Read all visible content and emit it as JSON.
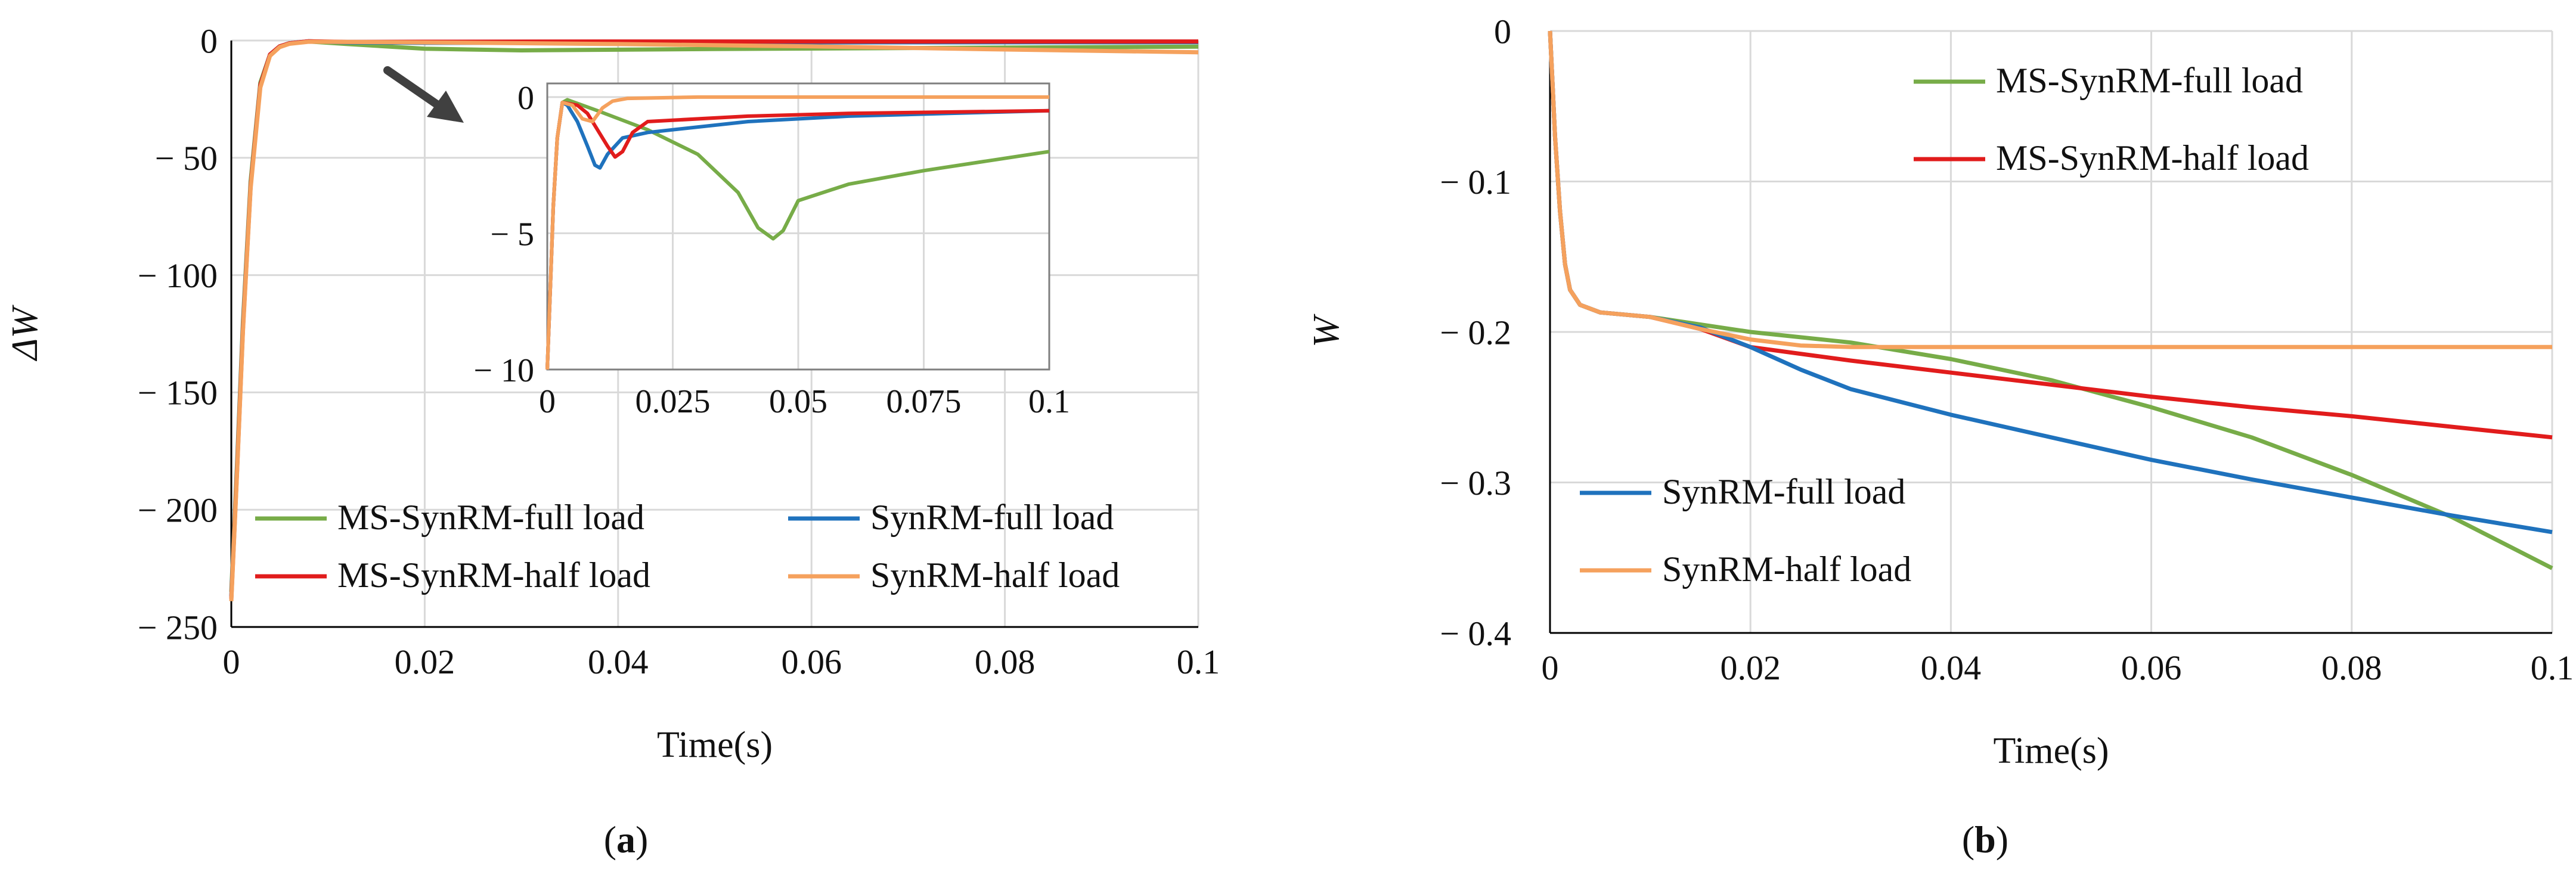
{
  "colors": {
    "ms_full": "#77ac48",
    "ms_half": "#e11c1c",
    "syn_full": "#1f72bd",
    "syn_half": "#f5a15d",
    "grid": "#d9d9d9",
    "axis": "#000000",
    "arrow": "#404040"
  },
  "chart_data": [
    {
      "id": "a",
      "type": "line",
      "panel_label": "a",
      "xlabel": "Time(s)",
      "ylabel": "ΔW",
      "xlim": [
        0,
        0.1
      ],
      "ylim": [
        -250,
        0
      ],
      "xticks": [
        0,
        0.02,
        0.04,
        0.06,
        0.08,
        0.1
      ],
      "xtick_labels": [
        "0",
        "0.02",
        "0.04",
        "0.06",
        "0.08",
        "0.1"
      ],
      "yticks": [
        0,
        -50,
        -100,
        -150,
        -200,
        -250
      ],
      "ytick_labels": [
        "0",
        "− 50",
        "− 100",
        "− 150",
        "− 200",
        "− 250"
      ],
      "grid": true,
      "legend": [
        "MS-SynRM-full load",
        "SynRM-full load",
        "MS-SynRM-half load",
        "SynRM-half load"
      ],
      "series": [
        {
          "name": "MS-SynRM-full load",
          "key": "ms_full",
          "points": [
            [
              0,
              -235
            ],
            [
              0.0006,
              -180
            ],
            [
              0.0012,
              -120
            ],
            [
              0.002,
              -60
            ],
            [
              0.003,
              -18
            ],
            [
              0.004,
              -6
            ],
            [
              0.005,
              -2.5
            ],
            [
              0.006,
              -1.2
            ],
            [
              0.008,
              -0.4
            ],
            [
              0.012,
              -1.5
            ],
            [
              0.02,
              -3.5
            ],
            [
              0.03,
              -4.2
            ],
            [
              0.05,
              -3.6
            ],
            [
              0.07,
              -3.2
            ],
            [
              0.1,
              -2.6
            ]
          ]
        },
        {
          "name": "SynRM-full load",
          "key": "syn_full",
          "points": [
            [
              0,
              -237
            ],
            [
              0.0006,
              -182
            ],
            [
              0.0012,
              -122
            ],
            [
              0.002,
              -62
            ],
            [
              0.003,
              -19
            ],
            [
              0.004,
              -6
            ],
            [
              0.005,
              -2.5
            ],
            [
              0.006,
              -1.2
            ],
            [
              0.008,
              -0.3
            ],
            [
              0.012,
              -0.8
            ],
            [
              0.02,
              -1
            ],
            [
              0.04,
              -0.9
            ],
            [
              0.06,
              -0.8
            ],
            [
              0.1,
              -0.7
            ]
          ]
        },
        {
          "name": "MS-SynRM-half load",
          "key": "ms_half",
          "points": [
            [
              0,
              -238
            ],
            [
              0.0006,
              -183
            ],
            [
              0.0012,
              -123
            ],
            [
              0.002,
              -62
            ],
            [
              0.003,
              -19
            ],
            [
              0.004,
              -6
            ],
            [
              0.005,
              -2.5
            ],
            [
              0.006,
              -1.2
            ],
            [
              0.008,
              -0.3
            ],
            [
              0.012,
              -0.6
            ],
            [
              0.02,
              -0.5
            ],
            [
              0.04,
              -0.4
            ],
            [
              0.06,
              -0.4
            ],
            [
              0.1,
              -0.4
            ]
          ]
        },
        {
          "name": "SynRM-half load",
          "key": "syn_half",
          "points": [
            [
              0,
              -239
            ],
            [
              0.0006,
              -184
            ],
            [
              0.0012,
              -124
            ],
            [
              0.002,
              -63
            ],
            [
              0.003,
              -20
            ],
            [
              0.004,
              -6.5
            ],
            [
              0.005,
              -2.8
            ],
            [
              0.006,
              -1.4
            ],
            [
              0.008,
              -0.5
            ],
            [
              0.02,
              -0.8
            ],
            [
              0.04,
              -1.5
            ],
            [
              0.06,
              -2.5
            ],
            [
              0.08,
              -3.8
            ],
            [
              0.1,
              -5
            ]
          ]
        }
      ],
      "inset": {
        "xlim": [
          0,
          0.1
        ],
        "ylim": [
          -10,
          0.5
        ],
        "xticks": [
          0,
          0.025,
          0.05,
          0.075,
          0.1
        ],
        "xtick_labels": [
          "0",
          "0.025",
          "0.05",
          "0.075",
          "0.1"
        ],
        "yticks": [
          0,
          -5,
          -10
        ],
        "ytick_labels": [
          "0",
          "− 5",
          "− 10"
        ],
        "series": [
          {
            "key": "ms_full",
            "points": [
              [
                0,
                -10
              ],
              [
                0.0006,
                -7
              ],
              [
                0.0012,
                -4
              ],
              [
                0.002,
                -1.5
              ],
              [
                0.003,
                -0.2
              ],
              [
                0.004,
                -0.1
              ],
              [
                0.01,
                -0.5
              ],
              [
                0.02,
                -1.2
              ],
              [
                0.03,
                -2.1
              ],
              [
                0.038,
                -3.5
              ],
              [
                0.042,
                -4.8
              ],
              [
                0.045,
                -5.2
              ],
              [
                0.047,
                -4.9
              ],
              [
                0.05,
                -3.8
              ],
              [
                0.06,
                -3.2
              ],
              [
                0.075,
                -2.7
              ],
              [
                0.1,
                -2.0
              ]
            ]
          },
          {
            "key": "syn_full",
            "points": [
              [
                0,
                -10
              ],
              [
                0.0006,
                -7
              ],
              [
                0.0012,
                -4
              ],
              [
                0.002,
                -1.5
              ],
              [
                0.003,
                -0.2
              ],
              [
                0.004,
                -0.3
              ],
              [
                0.006,
                -0.9
              ],
              [
                0.008,
                -1.8
              ],
              [
                0.0095,
                -2.5
              ],
              [
                0.0105,
                -2.6
              ],
              [
                0.012,
                -2.1
              ],
              [
                0.015,
                -1.5
              ],
              [
                0.02,
                -1.3
              ],
              [
                0.04,
                -0.9
              ],
              [
                0.06,
                -0.7
              ],
              [
                0.08,
                -0.6
              ],
              [
                0.1,
                -0.5
              ]
            ]
          },
          {
            "key": "ms_half",
            "points": [
              [
                0,
                -10
              ],
              [
                0.0006,
                -7
              ],
              [
                0.0012,
                -4
              ],
              [
                0.002,
                -1.5
              ],
              [
                0.003,
                -0.2
              ],
              [
                0.006,
                -0.3
              ],
              [
                0.008,
                -0.6
              ],
              [
                0.01,
                -1.2
              ],
              [
                0.012,
                -1.8
              ],
              [
                0.0135,
                -2.2
              ],
              [
                0.015,
                -2.0
              ],
              [
                0.017,
                -1.3
              ],
              [
                0.02,
                -0.9
              ],
              [
                0.04,
                -0.7
              ],
              [
                0.06,
                -0.6
              ],
              [
                0.1,
                -0.5
              ]
            ]
          },
          {
            "key": "syn_half",
            "points": [
              [
                0,
                -10
              ],
              [
                0.0006,
                -7
              ],
              [
                0.0012,
                -4
              ],
              [
                0.002,
                -1.5
              ],
              [
                0.003,
                -0.2
              ],
              [
                0.005,
                -0.3
              ],
              [
                0.007,
                -0.8
              ],
              [
                0.009,
                -0.9
              ],
              [
                0.011,
                -0.4
              ],
              [
                0.013,
                -0.15
              ],
              [
                0.016,
                -0.05
              ],
              [
                0.03,
                0
              ],
              [
                0.06,
                0
              ],
              [
                0.1,
                0
              ]
            ]
          }
        ]
      }
    },
    {
      "id": "b",
      "type": "line",
      "panel_label": "b",
      "xlabel": "Time(s)",
      "ylabel": "W",
      "xlim": [
        0,
        0.1
      ],
      "ylim": [
        -0.4,
        0
      ],
      "xticks": [
        0,
        0.02,
        0.04,
        0.06,
        0.08,
        0.1
      ],
      "xtick_labels": [
        "0",
        "0.02",
        "0.04",
        "0.06",
        "0.08",
        "0.1"
      ],
      "yticks": [
        0,
        -0.1,
        -0.2,
        -0.3,
        -0.4
      ],
      "ytick_labels": [
        "0",
        "− 0.1",
        "− 0.2",
        "− 0.3",
        "− 0.4"
      ],
      "grid": true,
      "legend": [
        "MS-SynRM-full load",
        "MS-SynRM-half load",
        "SynRM-full load",
        "SynRM-half load"
      ],
      "series": [
        {
          "name": "MS-SynRM-full load",
          "key": "ms_full",
          "points": [
            [
              0,
              0
            ],
            [
              0.0005,
              -0.07
            ],
            [
              0.001,
              -0.12
            ],
            [
              0.0015,
              -0.155
            ],
            [
              0.002,
              -0.172
            ],
            [
              0.003,
              -0.182
            ],
            [
              0.005,
              -0.187
            ],
            [
              0.01,
              -0.19
            ],
            [
              0.015,
              -0.195
            ],
            [
              0.02,
              -0.2
            ],
            [
              0.03,
              -0.207
            ],
            [
              0.04,
              -0.218
            ],
            [
              0.05,
              -0.232
            ],
            [
              0.06,
              -0.25
            ],
            [
              0.07,
              -0.27
            ],
            [
              0.08,
              -0.295
            ],
            [
              0.09,
              -0.323
            ],
            [
              0.1,
              -0.357
            ]
          ]
        },
        {
          "name": "MS-SynRM-half load",
          "key": "ms_half",
          "points": [
            [
              0,
              0
            ],
            [
              0.0005,
              -0.07
            ],
            [
              0.001,
              -0.12
            ],
            [
              0.0015,
              -0.155
            ],
            [
              0.002,
              -0.172
            ],
            [
              0.003,
              -0.182
            ],
            [
              0.005,
              -0.187
            ],
            [
              0.01,
              -0.19
            ],
            [
              0.015,
              -0.198
            ],
            [
              0.02,
              -0.21
            ],
            [
              0.03,
              -0.219
            ],
            [
              0.04,
              -0.227
            ],
            [
              0.05,
              -0.235
            ],
            [
              0.06,
              -0.243
            ],
            [
              0.07,
              -0.25
            ],
            [
              0.08,
              -0.256
            ],
            [
              0.09,
              -0.263
            ],
            [
              0.1,
              -0.27
            ]
          ]
        },
        {
          "name": "SynRM-full load",
          "key": "syn_full",
          "points": [
            [
              0,
              0
            ],
            [
              0.0005,
              -0.07
            ],
            [
              0.001,
              -0.12
            ],
            [
              0.0015,
              -0.155
            ],
            [
              0.002,
              -0.172
            ],
            [
              0.003,
              -0.182
            ],
            [
              0.005,
              -0.187
            ],
            [
              0.01,
              -0.19
            ],
            [
              0.015,
              -0.197
            ],
            [
              0.02,
              -0.21
            ],
            [
              0.025,
              -0.225
            ],
            [
              0.03,
              -0.238
            ],
            [
              0.04,
              -0.255
            ],
            [
              0.05,
              -0.27
            ],
            [
              0.06,
              -0.285
            ],
            [
              0.07,
              -0.298
            ],
            [
              0.08,
              -0.31
            ],
            [
              0.09,
              -0.322
            ],
            [
              0.1,
              -0.333
            ]
          ]
        },
        {
          "name": "SynRM-half load",
          "key": "syn_half",
          "points": [
            [
              0,
              0
            ],
            [
              0.0005,
              -0.07
            ],
            [
              0.001,
              -0.12
            ],
            [
              0.0015,
              -0.155
            ],
            [
              0.002,
              -0.172
            ],
            [
              0.003,
              -0.182
            ],
            [
              0.005,
              -0.187
            ],
            [
              0.01,
              -0.19
            ],
            [
              0.015,
              -0.198
            ],
            [
              0.02,
              -0.205
            ],
            [
              0.025,
              -0.209
            ],
            [
              0.03,
              -0.21
            ],
            [
              0.05,
              -0.21
            ],
            [
              0.07,
              -0.21
            ],
            [
              0.1,
              -0.21
            ]
          ]
        }
      ]
    }
  ]
}
